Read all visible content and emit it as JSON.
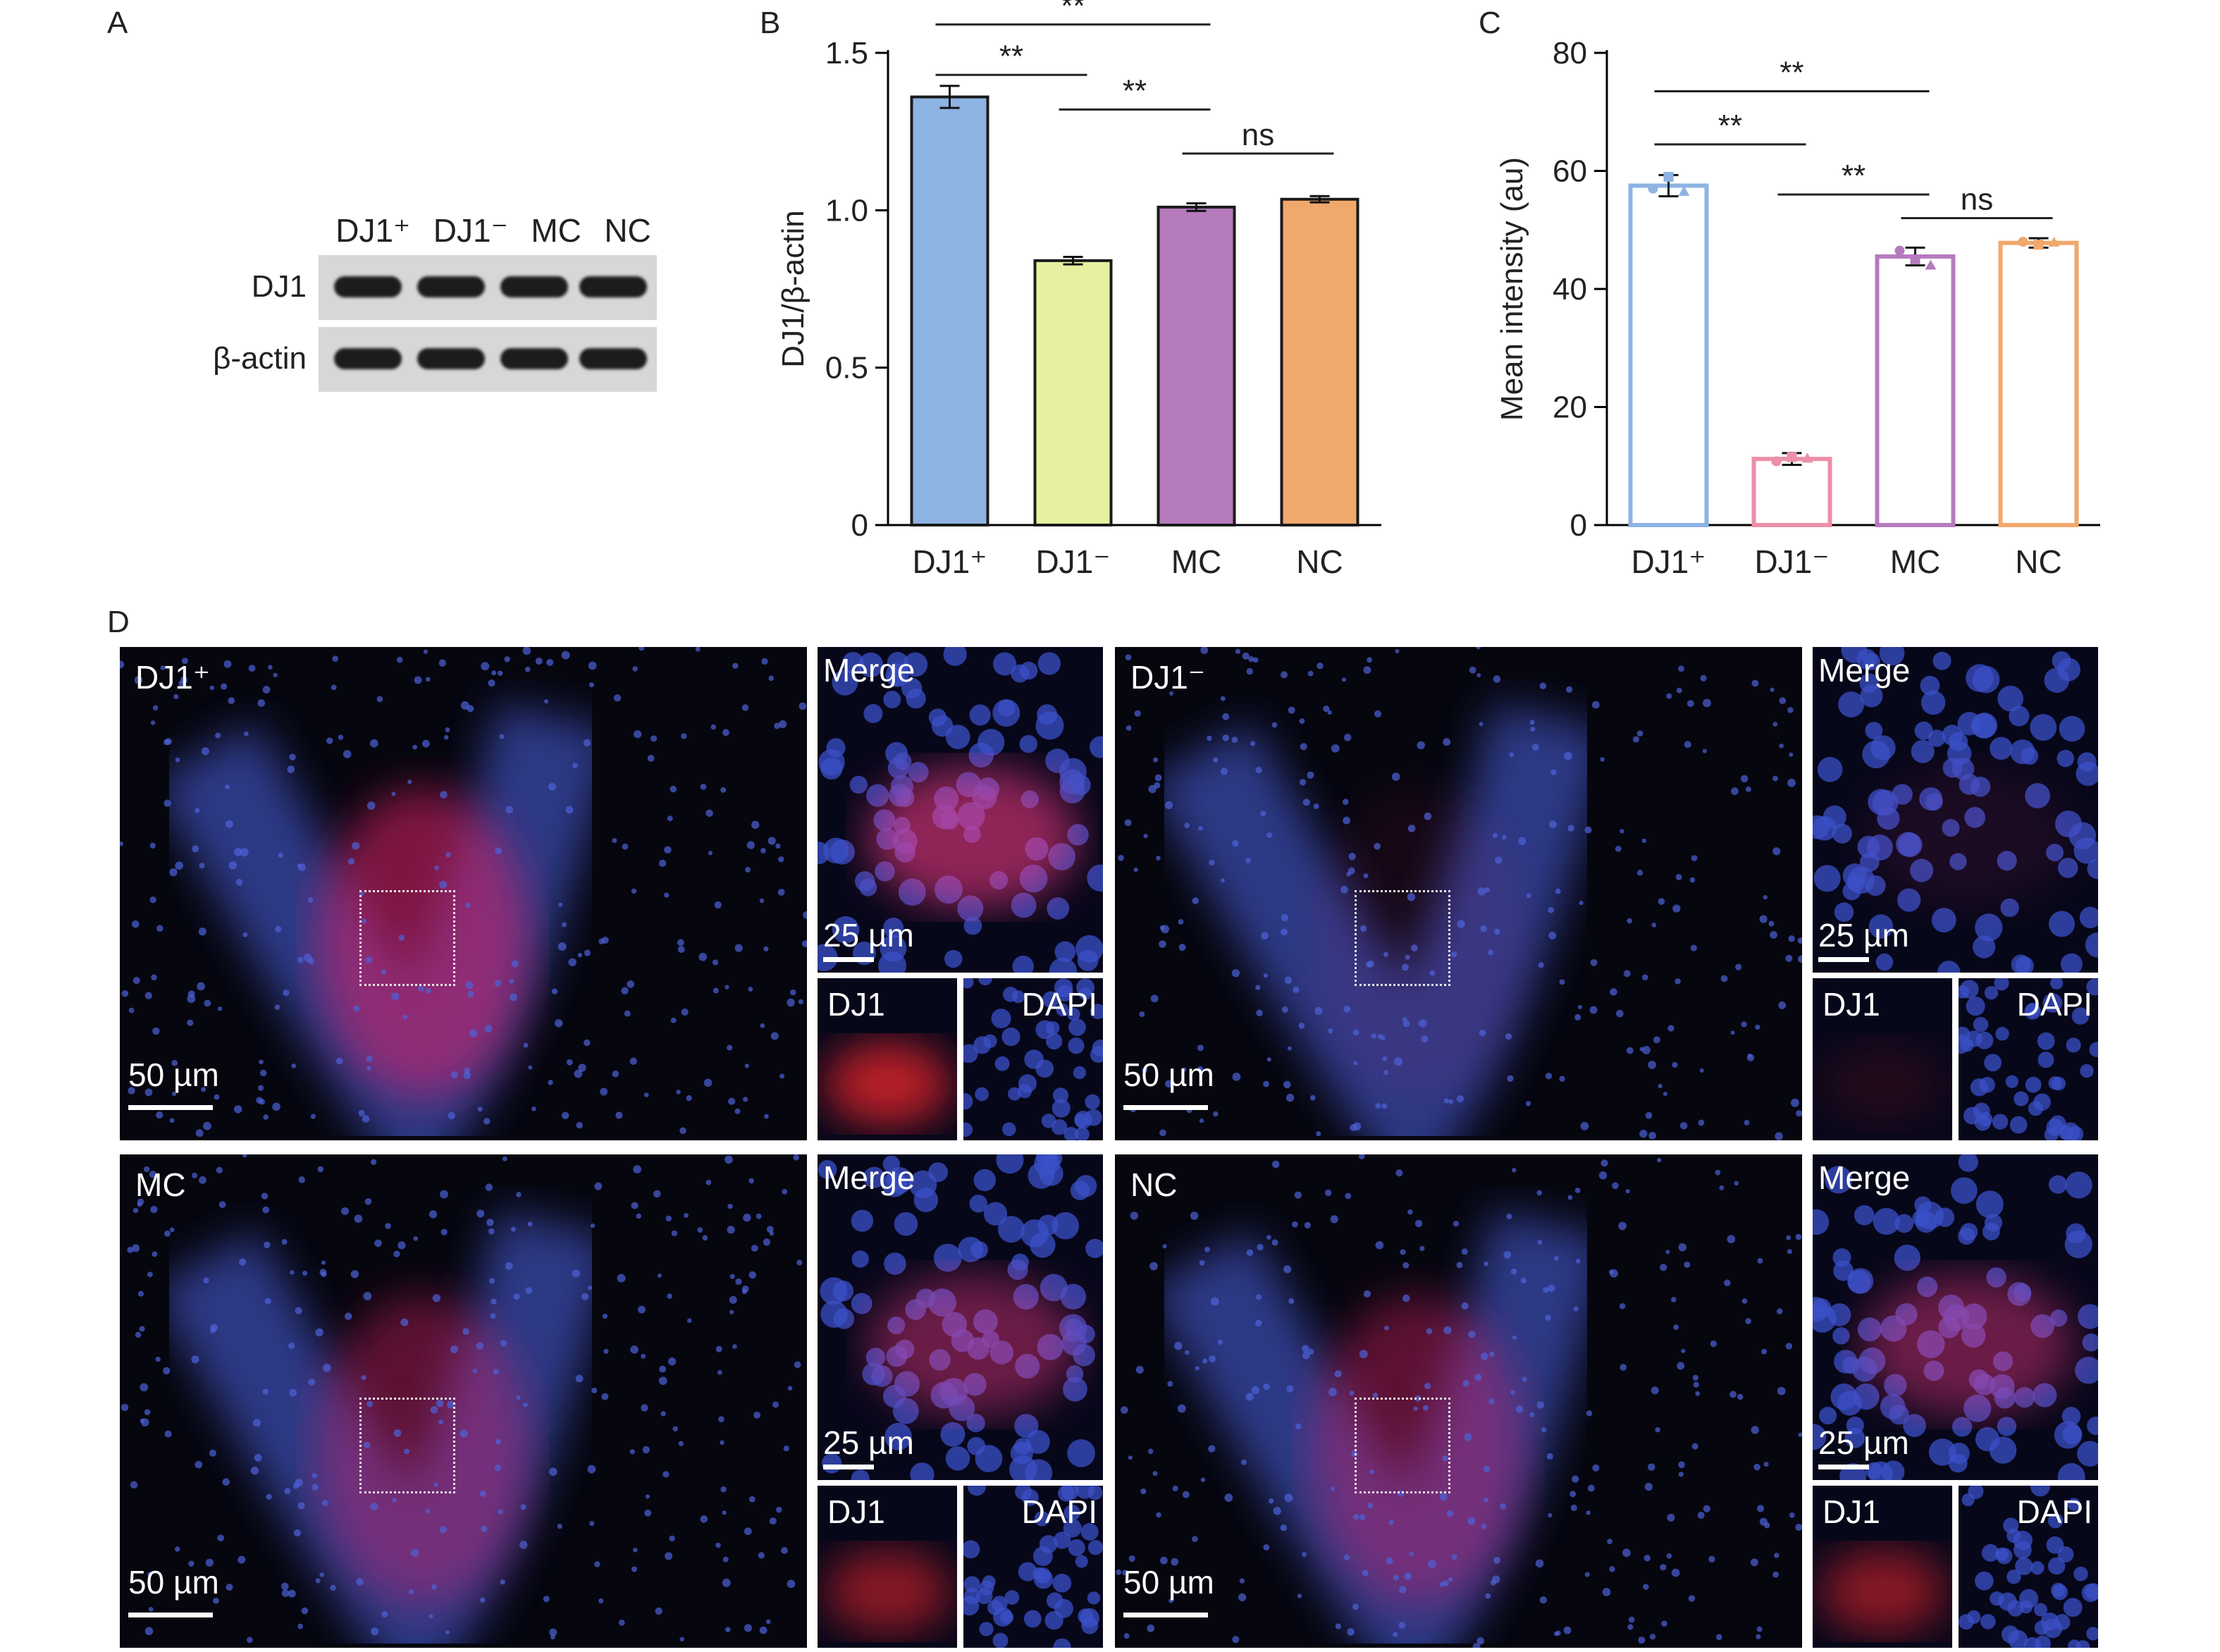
{
  "panel_labels": {
    "a": "A",
    "b": "B",
    "c": "C",
    "d": "D"
  },
  "western_blot": {
    "lanes": [
      "DJ1⁺",
      "DJ1⁻",
      "MC",
      "NC"
    ],
    "rows": [
      "DJ1",
      "β-actin"
    ]
  },
  "chart_data": [
    {
      "type": "bar",
      "categories": [
        "DJ1⁺",
        "DJ1⁻",
        "MC",
        "NC"
      ],
      "values": [
        1.36,
        0.84,
        1.01,
        1.035
      ],
      "errors": [
        0.035,
        0.012,
        0.012,
        0.01
      ],
      "ylabel": "DJ1/β-actin",
      "ylim": [
        0,
        1.5
      ],
      "yticks": [
        {
          "v": 0,
          "t": "0"
        },
        {
          "v": 0.5,
          "t": "0.5"
        },
        {
          "v": 1.0,
          "t": "1.0"
        },
        {
          "v": 1.5,
          "t": "1.5"
        }
      ],
      "colors": [
        "#8db3e2",
        "#e6f0a0",
        "#b57bbd",
        "#f0a86c"
      ],
      "filled": true,
      "significance": [
        {
          "from": 0,
          "to": 2,
          "label": "**",
          "y": 1.59
        },
        {
          "from": 0,
          "to": 1,
          "label": "**",
          "y": 1.43
        },
        {
          "from": 1,
          "to": 2,
          "label": "**",
          "y": 1.32
        },
        {
          "from": 2,
          "to": 3,
          "label": "ns",
          "y": 1.18
        }
      ]
    },
    {
      "type": "bar",
      "categories": [
        "DJ1⁺",
        "DJ1⁻",
        "MC",
        "NC"
      ],
      "values": [
        57.5,
        11.2,
        45.5,
        47.8
      ],
      "errors": [
        1.8,
        1.0,
        1.5,
        0.8
      ],
      "points": [
        [
          57.0,
          59.0,
          56.5
        ],
        [
          10.8,
          11.5,
          11.3
        ],
        [
          46.5,
          45.0,
          44.0
        ],
        [
          48.0,
          47.5,
          47.9
        ]
      ],
      "ylabel": "Mean intensity (au)",
      "ylim": [
        0,
        80
      ],
      "yticks": [
        {
          "v": 0,
          "t": "0"
        },
        {
          "v": 20,
          "t": "20"
        },
        {
          "v": 40,
          "t": "40"
        },
        {
          "v": 60,
          "t": "60"
        },
        {
          "v": 80,
          "t": "80"
        }
      ],
      "colors": [
        "#8db3e2",
        "#ec8fa8",
        "#b57bbd",
        "#f0a86c"
      ],
      "filled": false,
      "significance": [
        {
          "from": 0,
          "to": 2,
          "label": "**",
          "y": 73.5
        },
        {
          "from": 0,
          "to": 1,
          "label": "**",
          "y": 64.5
        },
        {
          "from": 1,
          "to": 2,
          "label": "**",
          "y": 56
        },
        {
          "from": 2,
          "to": 3,
          "label": "ns",
          "y": 52
        }
      ]
    }
  ],
  "micrographs": [
    {
      "label": "DJ1⁺",
      "scale": "50 µm",
      "merge": "Merge",
      "zoom_scale": "25 µm",
      "ch1": "DJ1",
      "ch2": "DAPI",
      "red": "strong"
    },
    {
      "label": "DJ1⁻",
      "scale": "50 µm",
      "merge": "Merge",
      "zoom_scale": "25 µm",
      "ch1": "DJ1",
      "ch2": "DAPI",
      "red": "weak"
    },
    {
      "label": "MC",
      "scale": "50 µm",
      "merge": "Merge",
      "zoom_scale": "25 µm",
      "ch1": "DJ1",
      "ch2": "DAPI",
      "red": "medium"
    },
    {
      "label": "NC",
      "scale": "50 µm",
      "merge": "Merge",
      "zoom_scale": "25 µm",
      "ch1": "DJ1",
      "ch2": "DAPI",
      "red": "medium"
    }
  ]
}
